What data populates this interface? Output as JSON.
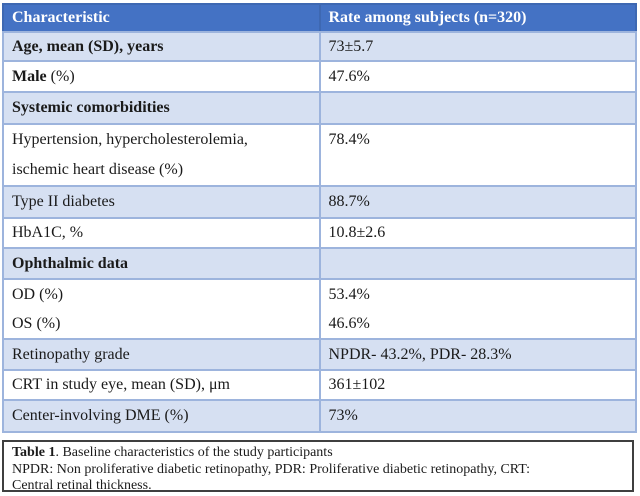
{
  "colors": {
    "header_bg": "#4472c4",
    "header_text": "#ffffff",
    "band_bg": "#d6e0f2",
    "table_border": "#9db4dd",
    "caption_border": "#3f3f3f"
  },
  "table": {
    "header": {
      "characteristic": "Characteristic",
      "rate": "Rate among subjects (n=320)"
    },
    "rows": [
      {
        "label": "Age, mean (SD), years",
        "value": "73±5.7"
      },
      {
        "label_bold": "Male",
        "label_rest": " (%)",
        "value": "47.6%"
      },
      {
        "label": "Systemic comorbidities",
        "value": ""
      },
      {
        "label": "Hypertension, hypercholesterolemia,",
        "label2": "ischemic heart disease (%)",
        "value": "78.4%"
      },
      {
        "label": "Type II diabetes",
        "value": "88.7%"
      },
      {
        "label": "HbA1C, %",
        "value": "10.8±2.6"
      },
      {
        "label": "Ophthalmic data",
        "value": ""
      },
      {
        "label": "OD (%)",
        "label2": "OS (%)",
        "value": "53.4%",
        "value2": "46.6%"
      },
      {
        "label": "Retinopathy grade",
        "value": "NPDR- 43.2%, PDR- 28.3%"
      },
      {
        "label": "CRT in study eye, mean (SD), μm",
        "value": "361±102"
      },
      {
        "label": "Center-involving DME (%)",
        "value": "73%"
      }
    ]
  },
  "caption": {
    "title_bold": "Table 1",
    "title_rest": ". Baseline characteristics of the study participants",
    "line2": "NPDR: Non proliferative diabetic retinopathy, PDR: Proliferative diabetic retinopathy, CRT:",
    "line3": "Central retinal thickness."
  }
}
